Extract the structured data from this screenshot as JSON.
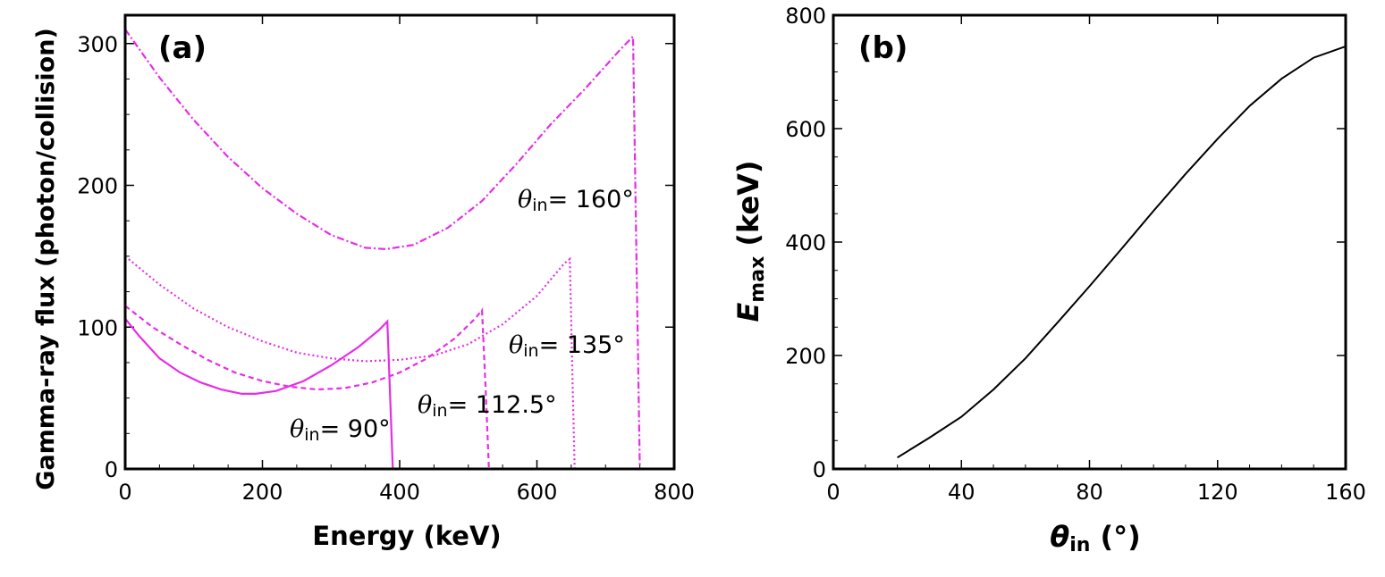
{
  "chart_data": [
    {
      "panel": "(a)",
      "type": "line",
      "xlabel": "Energy (keV)",
      "ylabel": "Gamma-ray flux (photon/collision)",
      "xlim": [
        0,
        800
      ],
      "ylim": [
        0,
        320
      ],
      "xticks": [
        0,
        200,
        400,
        600,
        800
      ],
      "yticks": [
        0,
        100,
        200,
        300
      ],
      "color": "#e62ee6",
      "series": [
        {
          "name": "90",
          "label_theta": "θ",
          "label_sub": "in",
          "label_rest": "= 90°",
          "style": "solid",
          "x": [
            0,
            20,
            50,
            80,
            110,
            140,
            170,
            190,
            220,
            260,
            300,
            340,
            370,
            382,
            387,
            390
          ],
          "y": [
            106,
            94,
            78,
            68,
            61,
            56,
            53,
            53,
            55,
            62,
            73,
            86,
            98,
            104,
            40,
            0
          ]
        },
        {
          "name": "112.5",
          "label_theta": "θ",
          "label_sub": "in",
          "label_rest": "= 112.5°",
          "style": "dashed",
          "x": [
            0,
            40,
            80,
            120,
            160,
            200,
            240,
            280,
            320,
            360,
            400,
            440,
            480,
            510,
            520,
            525,
            530
          ],
          "y": [
            115,
            100,
            88,
            77,
            68,
            62,
            58,
            56,
            57,
            61,
            68,
            78,
            92,
            106,
            112,
            60,
            0
          ]
        },
        {
          "name": "135",
          "label_theta": "θ",
          "label_sub": "in",
          "label_rest": "= 135°",
          "style": "dotted",
          "x": [
            0,
            50,
            100,
            150,
            200,
            250,
            300,
            350,
            400,
            450,
            500,
            550,
            600,
            640,
            648,
            652,
            655
          ],
          "y": [
            150,
            130,
            113,
            100,
            90,
            82,
            78,
            76,
            77,
            80,
            88,
            102,
            122,
            145,
            148,
            60,
            0
          ]
        },
        {
          "name": "160",
          "label_theta": "θ",
          "label_sub": "in",
          "label_rest": "= 160°",
          "style": "dashdot",
          "x": [
            0,
            50,
            100,
            150,
            200,
            250,
            300,
            350,
            380,
            420,
            470,
            520,
            570,
            620,
            670,
            720,
            740,
            745,
            750
          ],
          "y": [
            310,
            276,
            246,
            220,
            198,
            180,
            165,
            156,
            155,
            158,
            170,
            189,
            215,
            243,
            268,
            295,
            305,
            150,
            0
          ]
        }
      ]
    },
    {
      "panel": "(b)",
      "type": "line",
      "xlabel_theta": "θ",
      "xlabel_sub": "in",
      "xlabel_rest": " (°)",
      "ylabel_e": "E",
      "ylabel_sub": "max",
      "ylabel_rest": " (keV)",
      "xlim": [
        0,
        160
      ],
      "ylim": [
        0,
        800
      ],
      "xticks": [
        0,
        40,
        80,
        120,
        160
      ],
      "yticks": [
        0,
        200,
        400,
        600,
        800
      ],
      "color": "#000000",
      "series": [
        {
          "name": "Emax",
          "x": [
            20,
            30,
            40,
            50,
            60,
            70,
            80,
            90,
            100,
            110,
            120,
            130,
            140,
            150,
            160
          ],
          "y": [
            20,
            55,
            92,
            140,
            195,
            258,
            322,
            388,
            455,
            520,
            582,
            640,
            688,
            725,
            745
          ]
        }
      ]
    }
  ]
}
